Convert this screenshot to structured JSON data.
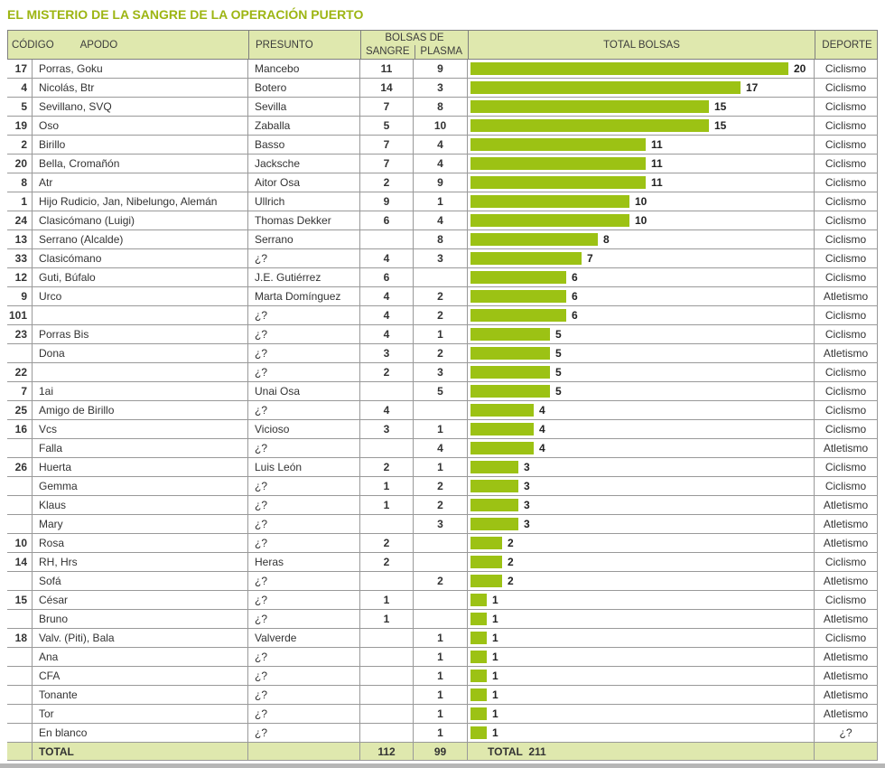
{
  "title": "EL MISTERIO DE LA SANGRE DE LA OPERACIÓN PUERTO",
  "colors": {
    "accent_green": "#9db513",
    "bar_green": "#9cc214",
    "header_bg": "#dfe8ae",
    "border_gray": "#999999"
  },
  "header": {
    "codigo": "CÓDIGO",
    "apodo": "APODO",
    "presunto": "PRESUNTO",
    "bolsas_group": "BOLSAS DE",
    "sangre": "SANGRE",
    "plasma": "PLASMA",
    "total_bolsas": "TOTAL BOLSAS",
    "deporte": "DEPORTE"
  },
  "footer": {
    "label": "TOTAL",
    "sangre": "112",
    "plasma": "99",
    "total_text": "TOTAL  211"
  },
  "chart_data": {
    "type": "bar",
    "orientation": "horizontal",
    "title": "EL MISTERIO DE LA SANGRE DE LA OPERACIÓN PUERTO",
    "value_label": "TOTAL BOLSAS",
    "bar_max": 20,
    "columns": [
      "CÓDIGO",
      "APODO",
      "PRESUNTO",
      "SANGRE",
      "PLASMA",
      "TOTAL BOLSAS",
      "DEPORTE"
    ],
    "totals": {
      "sangre": 112,
      "plasma": 99,
      "total": 211
    },
    "rows": [
      {
        "codigo": "17",
        "apodo": "Porras, Goku",
        "presunto": "Mancebo",
        "sangre": "11",
        "plasma": "9",
        "total": 20,
        "deporte": "Ciclismo"
      },
      {
        "codigo": "4",
        "apodo": "Nicolás, Btr",
        "presunto": "Botero",
        "sangre": "14",
        "plasma": "3",
        "total": 17,
        "deporte": "Ciclismo"
      },
      {
        "codigo": "5",
        "apodo": "Sevillano, SVQ",
        "presunto": "Sevilla",
        "sangre": "7",
        "plasma": "8",
        "total": 15,
        "deporte": "Ciclismo"
      },
      {
        "codigo": "19",
        "apodo": "Oso",
        "presunto": "Zaballa",
        "sangre": "5",
        "plasma": "10",
        "total": 15,
        "deporte": "Ciclismo"
      },
      {
        "codigo": "2",
        "apodo": "Birillo",
        "presunto": "Basso",
        "sangre": "7",
        "plasma": "4",
        "total": 11,
        "deporte": "Ciclismo"
      },
      {
        "codigo": "20",
        "apodo": "Bella, Cromañón",
        "presunto": "Jacksche",
        "sangre": "7",
        "plasma": "4",
        "total": 11,
        "deporte": "Ciclismo"
      },
      {
        "codigo": "8",
        "apodo": "Atr",
        "presunto": "Aitor Osa",
        "sangre": "2",
        "plasma": "9",
        "total": 11,
        "deporte": "Ciclismo"
      },
      {
        "codigo": "1",
        "apodo": "Hijo Rudicio, Jan, Nibelungo, Alemán",
        "presunto": "Ullrich",
        "sangre": "9",
        "plasma": "1",
        "total": 10,
        "deporte": "Ciclismo"
      },
      {
        "codigo": "24",
        "apodo": "Clasicómano (Luigi)",
        "presunto": "Thomas Dekker",
        "sangre": "6",
        "plasma": "4",
        "total": 10,
        "deporte": "Ciclismo"
      },
      {
        "codigo": "13",
        "apodo": "Serrano (Alcalde)",
        "presunto": "Serrano",
        "sangre": "",
        "plasma": "8",
        "total": 8,
        "deporte": "Ciclismo"
      },
      {
        "codigo": "33",
        "apodo": "Clasicómano",
        "presunto": "¿?",
        "sangre": "4",
        "plasma": "3",
        "total": 7,
        "deporte": "Ciclismo"
      },
      {
        "codigo": "12",
        "apodo": "Guti, Búfalo",
        "presunto": "J.E. Gutiérrez",
        "sangre": "6",
        "plasma": "",
        "total": 6,
        "deporte": "Ciclismo"
      },
      {
        "codigo": "9",
        "apodo": "Urco",
        "presunto": "Marta Domínguez",
        "sangre": "4",
        "plasma": "2",
        "total": 6,
        "deporte": "Atletismo"
      },
      {
        "codigo": "101",
        "apodo": "",
        "presunto": "¿?",
        "sangre": "4",
        "plasma": "2",
        "total": 6,
        "deporte": "Ciclismo"
      },
      {
        "codigo": "23",
        "apodo": "Porras Bis",
        "presunto": "¿?",
        "sangre": "4",
        "plasma": "1",
        "total": 5,
        "deporte": "Ciclismo"
      },
      {
        "codigo": "",
        "apodo": "Dona",
        "presunto": "¿?",
        "sangre": "3",
        "plasma": "2",
        "total": 5,
        "deporte": "Atletismo"
      },
      {
        "codigo": "22",
        "apodo": "",
        "presunto": "¿?",
        "sangre": "2",
        "plasma": "3",
        "total": 5,
        "deporte": "Ciclismo"
      },
      {
        "codigo": "7",
        "apodo": "1ai",
        "presunto": "Unai Osa",
        "sangre": "",
        "plasma": "5",
        "total": 5,
        "deporte": "Ciclismo"
      },
      {
        "codigo": "25",
        "apodo": "Amigo de Birillo",
        "presunto": "¿?",
        "sangre": "4",
        "plasma": "",
        "total": 4,
        "deporte": "Ciclismo"
      },
      {
        "codigo": "16",
        "apodo": "Vcs",
        "presunto": "Vicioso",
        "sangre": "3",
        "plasma": "1",
        "total": 4,
        "deporte": "Ciclismo"
      },
      {
        "codigo": "",
        "apodo": "Falla",
        "presunto": "¿?",
        "sangre": "",
        "plasma": "4",
        "total": 4,
        "deporte": "Atletismo"
      },
      {
        "codigo": "26",
        "apodo": "Huerta",
        "presunto": "Luis León",
        "sangre": "2",
        "plasma": "1",
        "total": 3,
        "deporte": "Ciclismo"
      },
      {
        "codigo": "",
        "apodo": "Gemma",
        "presunto": "¿?",
        "sangre": "1",
        "plasma": "2",
        "total": 3,
        "deporte": "Ciclismo"
      },
      {
        "codigo": "",
        "apodo": "Klaus",
        "presunto": "¿?",
        "sangre": "1",
        "plasma": "2",
        "total": 3,
        "deporte": "Atletismo"
      },
      {
        "codigo": "",
        "apodo": "Mary",
        "presunto": "¿?",
        "sangre": "",
        "plasma": "3",
        "total": 3,
        "deporte": "Atletismo"
      },
      {
        "codigo": "10",
        "apodo": "Rosa",
        "presunto": "¿?",
        "sangre": "2",
        "plasma": "",
        "total": 2,
        "deporte": "Atletismo"
      },
      {
        "codigo": "14",
        "apodo": "RH, Hrs",
        "presunto": "Heras",
        "sangre": "2",
        "plasma": "",
        "total": 2,
        "deporte": "Ciclismo"
      },
      {
        "codigo": "",
        "apodo": "Sofá",
        "presunto": "¿?",
        "sangre": "",
        "plasma": "2",
        "total": 2,
        "deporte": "Atletismo"
      },
      {
        "codigo": "15",
        "apodo": "César",
        "presunto": "¿?",
        "sangre": "1",
        "plasma": "",
        "total": 1,
        "deporte": "Ciclismo"
      },
      {
        "codigo": "",
        "apodo": "Bruno",
        "presunto": "¿?",
        "sangre": "1",
        "plasma": "",
        "total": 1,
        "deporte": "Atletismo"
      },
      {
        "codigo": "18",
        "apodo": "Valv. (Piti), Bala",
        "presunto": "Valverde",
        "sangre": "",
        "plasma": "1",
        "total": 1,
        "deporte": "Ciclismo"
      },
      {
        "codigo": "",
        "apodo": "Ana",
        "presunto": "¿?",
        "sangre": "",
        "plasma": "1",
        "total": 1,
        "deporte": "Atletismo"
      },
      {
        "codigo": "",
        "apodo": "CFA",
        "presunto": "¿?",
        "sangre": "",
        "plasma": "1",
        "total": 1,
        "deporte": "Atletismo"
      },
      {
        "codigo": "",
        "apodo": "Tonante",
        "presunto": "¿?",
        "sangre": "",
        "plasma": "1",
        "total": 1,
        "deporte": "Atletismo"
      },
      {
        "codigo": "",
        "apodo": "Tor",
        "presunto": "¿?",
        "sangre": "",
        "plasma": "1",
        "total": 1,
        "deporte": "Atletismo"
      },
      {
        "codigo": "",
        "apodo": "En blanco",
        "presunto": "¿?",
        "sangre": "",
        "plasma": "1",
        "total": 1,
        "deporte": "¿?"
      }
    ]
  }
}
